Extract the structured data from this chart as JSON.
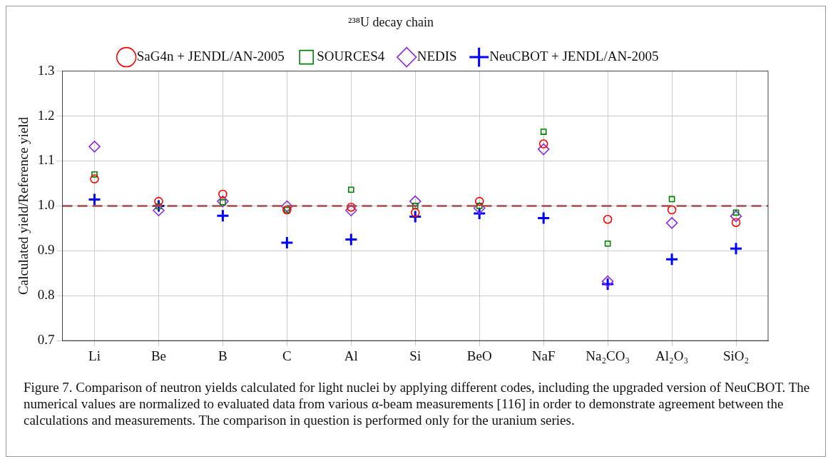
{
  "chart_data": {
    "type": "scatter",
    "ylabel": "Calculated yield/Reference yield",
    "legend_title": "²³⁸U decay chain",
    "categories": [
      "Li",
      "Be",
      "B",
      "C",
      "Al",
      "Si",
      "BeO",
      "NaF",
      "Na₂CO₃",
      "Al₂O₃",
      "SiO₂"
    ],
    "series": [
      {
        "name": "SaG4n + JENDL/AN-2005",
        "color": "#ff0000",
        "marker": "circle",
        "values": [
          1.06,
          1.01,
          1.026,
          0.991,
          0.997,
          0.985,
          1.01,
          1.138,
          0.97,
          0.991,
          0.963
        ]
      },
      {
        "name": "SOURCES4",
        "color": "#008000",
        "marker": "square",
        "values": [
          1.07,
          0.999,
          1.008,
          0.991,
          1.036,
          1.0,
          1.0,
          1.165,
          0.916,
          1.015,
          0.985
        ]
      },
      {
        "name": "NEDIS",
        "color": "#8a2be2",
        "marker": "diamond",
        "values": [
          1.132,
          0.99,
          1.01,
          0.999,
          0.99,
          1.01,
          0.995,
          1.126,
          0.832,
          0.962,
          0.977
        ]
      },
      {
        "name": "NeuCBOT + JENDL/AN-2005",
        "color": "#0000ff",
        "marker": "cross",
        "values": [
          1.014,
          1.0,
          0.978,
          0.918,
          0.925,
          0.976,
          0.983,
          0.973,
          0.826,
          0.881,
          0.905
        ]
      }
    ],
    "ylim": [
      0.7,
      1.3
    ],
    "yticks": [
      {
        "value": 0.7,
        "label": "0.7"
      },
      {
        "value": 0.8,
        "label": "0.8"
      },
      {
        "value": 0.9,
        "label": "0.9"
      },
      {
        "value": 1,
        "label": "1.0"
      },
      {
        "value": 1.1,
        "label": "1.1"
      },
      {
        "value": 1.2,
        "label": "1.2"
      },
      {
        "value": 1.3,
        "label": "1.3"
      }
    ],
    "ref_lines": [
      {
        "axis": "y",
        "value": 1,
        "color": "#a84848",
        "line_style": "dashed"
      }
    ],
    "grid": true,
    "legend": "top",
    "annotations": [
      "Figure 7. Comparison of neutron yields calculated for light nuclei by applying different codes, including the upgraded version of NeuCBOT. The numerical values are normalized to evaluated data from various α-beam measurements [116] in order to demonstrate agreement between the calculations and measurements. The comparison in question is performed only for the uranium series."
    ]
  }
}
